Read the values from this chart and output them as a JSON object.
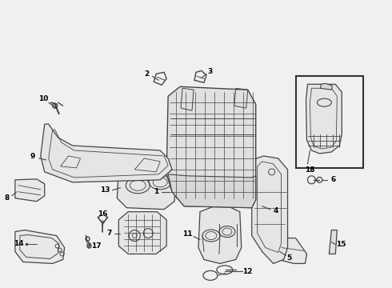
{
  "bg_color": "#f0f0f0",
  "line_color": "#444444",
  "lw": 0.8,
  "fig_width": 4.9,
  "fig_height": 3.6,
  "dpi": 100
}
